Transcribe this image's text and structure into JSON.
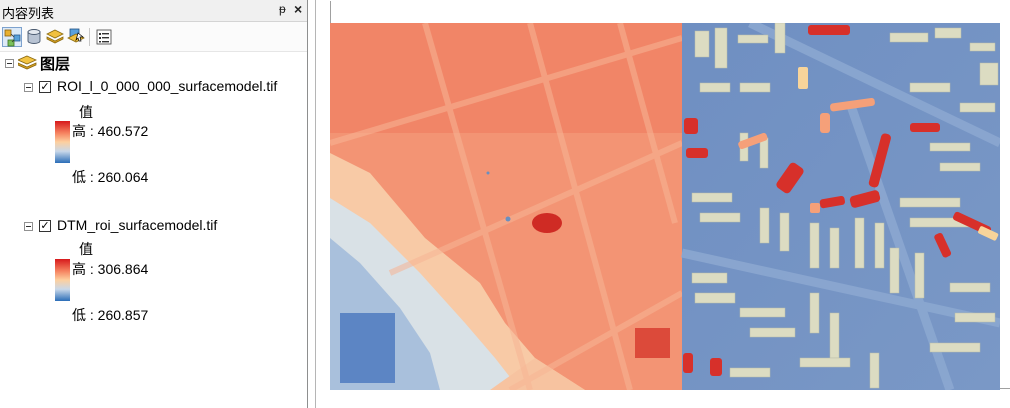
{
  "toc": {
    "title": "内容列表",
    "pin_glyph": "ᵽ",
    "close_glyph": "×",
    "toolbar": [
      "list-by-drawing-order-icon",
      "list-by-source-icon",
      "list-by-visibility-icon",
      "list-by-selection-icon",
      "options-icon"
    ],
    "root": {
      "label": "图层",
      "expanded": true
    },
    "layers": [
      {
        "name": "ROI_l_0_000_000_surfacemodel.tif",
        "checked": true,
        "field": "值",
        "high_label": "高 : 460.572",
        "low_label": "低 : 260.064"
      },
      {
        "name": "DTM_roi_surfacemodel.tif",
        "checked": true,
        "field": "值",
        "high_label": "高 : 306.864",
        "low_label": "低 : 260.857"
      }
    ]
  },
  "map": {
    "ramp_colors": [
      "#d7191c",
      "#f5805e",
      "#fdcf9f",
      "#c9d8e9",
      "#2b6eb8"
    ]
  }
}
